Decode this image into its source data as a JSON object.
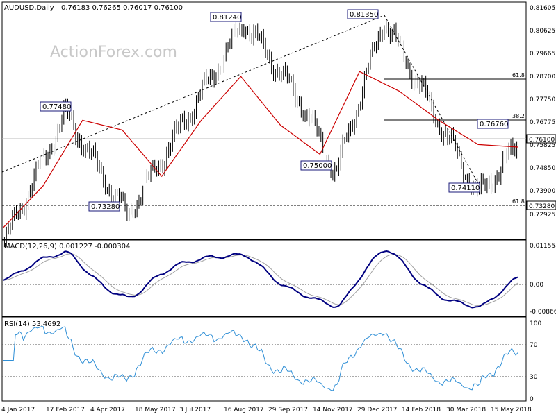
{
  "colors": {
    "background": "#ffffff",
    "border": "#000000",
    "candles": "#000000",
    "ma": "#cc0000",
    "macd": "#000080",
    "signal": "#a0a0a0",
    "rsi": "#2f8fd6",
    "label_box": "#1a1a7a",
    "watermark": "#c8c8c8",
    "grid": "#bbbbbb"
  },
  "watermark": "ActionForex.com",
  "price_panel": {
    "header": "AUDUSD,Daily",
    "ohlc": "0.76183 0.76265 0.76017 0.76100",
    "axis_ticks": [
      "0.81605",
      "0.80625",
      "0.79665",
      "0.78700",
      "0.77750",
      "0.76775",
      "0.75825",
      "0.74850",
      "0.73900",
      "0.72925"
    ],
    "last_price": "0.76100",
    "level_tag": "0.73280",
    "swing_labels": [
      "0.77480",
      "0.81240",
      "0.81350",
      "0.75000",
      "0.73280",
      "0.74110",
      "0.76760"
    ],
    "fib_labels": [
      "61.8",
      "38.2",
      "61.8"
    ]
  },
  "macd_panel": {
    "header": "MACD(12,26,9) 0.001227 -0.000304",
    "axis_ticks": [
      "0.011554",
      "0.00",
      "-0.008664"
    ]
  },
  "rsi_panel": {
    "header": "RSI(14) 53.4692",
    "axis_ticks": [
      "100",
      "70",
      "30",
      "0"
    ]
  },
  "x_axis": {
    "labels": [
      "4 Jan 2017",
      "17 Feb 2017",
      "4 Apr 2017",
      "18 May 2017",
      "3 Jul 2017",
      "16 Aug 2017",
      "29 Sep 2017",
      "14 Nov 2017",
      "29 Dec 2017",
      "14 Feb 2018",
      "30 Mar 2018",
      "15 May 2018"
    ]
  },
  "chart_data": {
    "type": "candlestick",
    "symbol": "AUDUSD",
    "timeframe": "Daily",
    "ylim": [
      0.7245,
      0.818
    ],
    "anchors": [
      {
        "date": "4 Jan 2017",
        "close": 0.722
      },
      {
        "date": "17 Feb 2017",
        "close": 0.7748
      },
      {
        "date": "9 May 2017",
        "close": 0.7328
      },
      {
        "date": "15 Aug 2017",
        "close": 0.8124
      },
      {
        "date": "6 Oct 2017",
        "close": 0.779
      },
      {
        "date": "8 Dec 2017",
        "close": 0.75
      },
      {
        "date": "26 Jan 2018",
        "close": 0.8135
      },
      {
        "date": "9 May 2018",
        "close": 0.7411
      },
      {
        "date": "1 Jun 2018",
        "close": 0.761
      }
    ],
    "moving_average": {
      "name": "MA",
      "values": [
        0.728,
        0.745,
        0.772,
        0.768,
        0.749,
        0.772,
        0.79,
        0.77,
        0.758,
        0.792,
        0.784,
        0.772,
        0.762,
        0.761
      ]
    },
    "fibonacci": [
      {
        "ratio": "61.8",
        "price": 0.7862
      },
      {
        "ratio": "38.2",
        "price": 0.7685
      },
      {
        "ratio": "61.8",
        "price": 0.7328
      }
    ],
    "macd": {
      "macd": 0.001227,
      "signal": -0.000304,
      "ylim": [
        -0.012,
        0.013
      ]
    },
    "rsi": {
      "value": 53.4692,
      "levels": [
        70,
        30
      ],
      "ylim": [
        0,
        100
      ]
    }
  }
}
